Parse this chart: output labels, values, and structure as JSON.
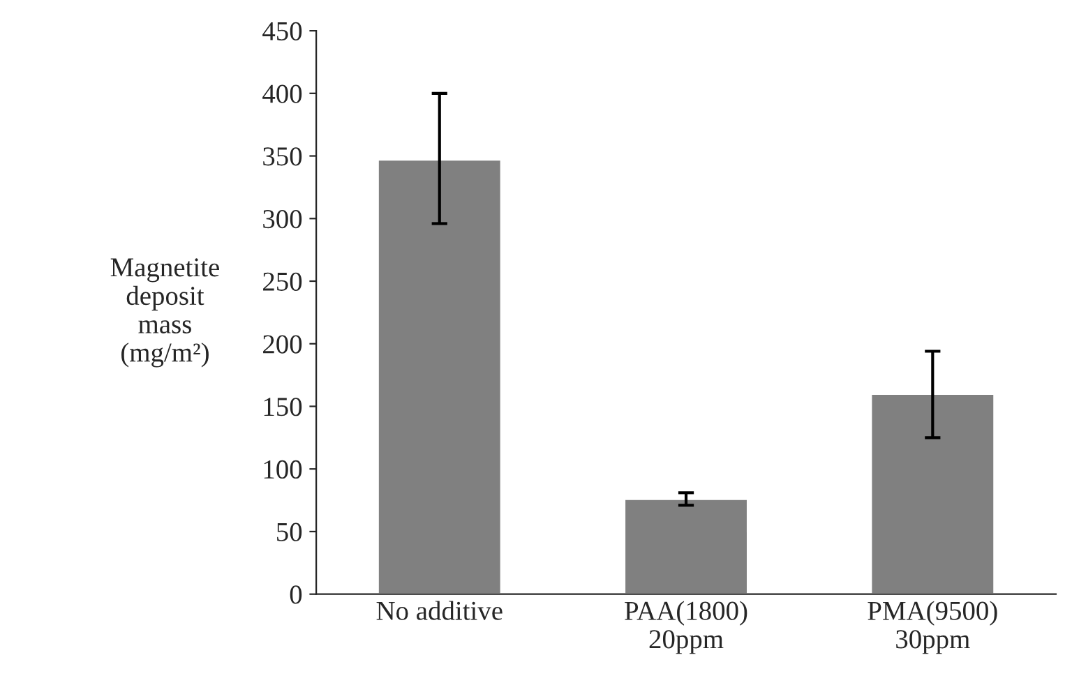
{
  "chart_data": {
    "type": "bar",
    "categories": [
      "No additive",
      "PAA(1800)\n20ppm",
      "PMA(9500)\n30ppm"
    ],
    "values": [
      347,
      76,
      160
    ],
    "errors": [
      [
        296,
        400
      ],
      [
        71,
        81
      ],
      [
        125,
        194
      ]
    ],
    "color": "#808080",
    "ylabel": "Magnetite\ndeposit\nmass\n(mg/m²)",
    "ylim": [
      0,
      450
    ],
    "yticks": [
      0,
      50,
      100,
      150,
      200,
      250,
      300,
      350,
      400,
      450
    ],
    "grid": false,
    "legend": false
  }
}
